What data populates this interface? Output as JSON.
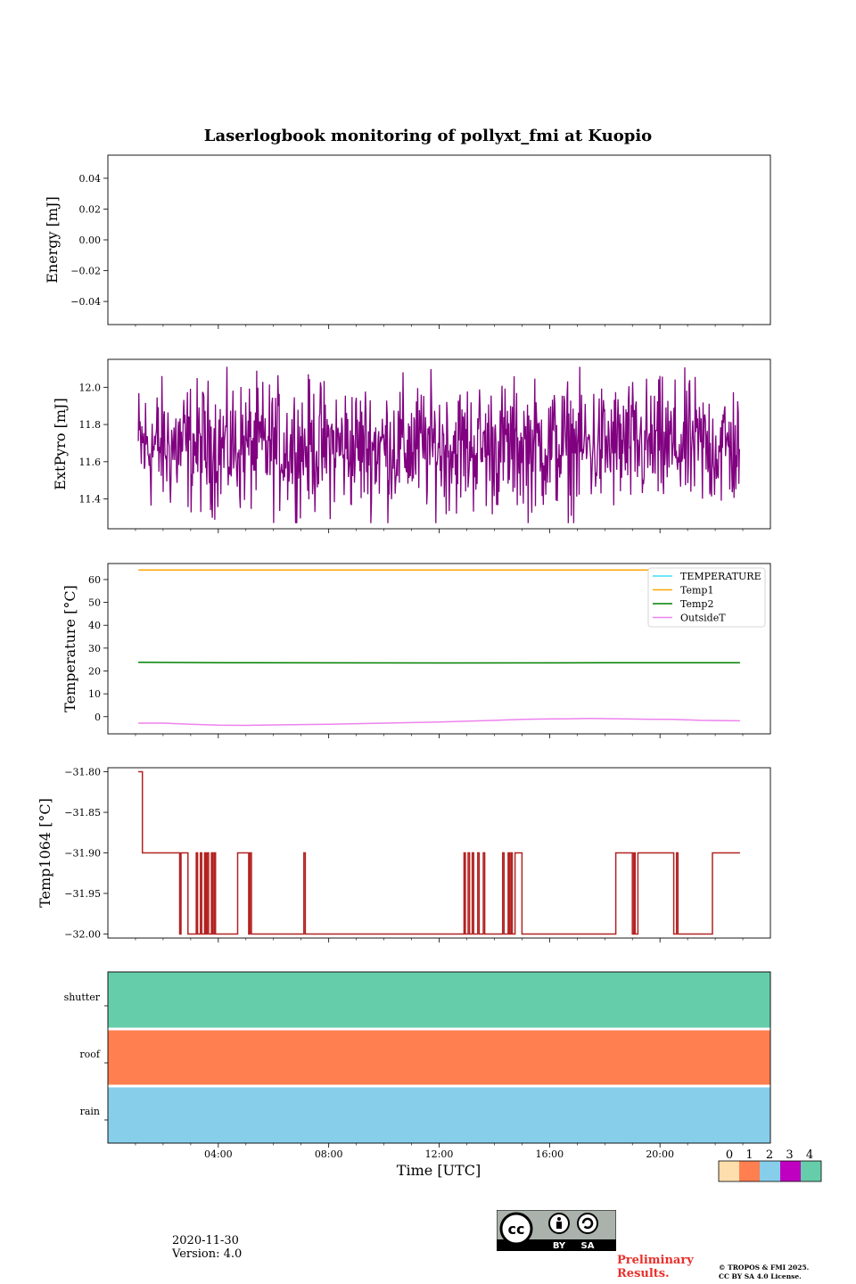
{
  "title": "Laserlogbook monitoring of pollyxt_fmi at Kuopio",
  "footer": {
    "date": "2020-11-30",
    "version": "Version: 4.0",
    "preliminary": "Preliminary Results.",
    "copyright_line1": "© TROPOS & FMI 2025.",
    "copyright_line2": "CC BY SA 4.0 License.",
    "license_badge": {
      "icon": "cc-by-sa-icon",
      "by": "BY",
      "sa": "SA"
    }
  },
  "chart_data": [
    {
      "id": "energy",
      "type": "line",
      "ylabel": "Energy [mJ]",
      "ylim": [
        -0.055,
        0.055
      ],
      "yticks": [
        "0.04",
        "0.02",
        "0.00",
        "−0.02",
        "−0.04"
      ],
      "ytick_values": [
        0.04,
        0.02,
        0.0,
        -0.02,
        -0.04
      ],
      "series": []
    },
    {
      "id": "extpyro",
      "type": "line",
      "ylabel": "ExtPyro [mJ]",
      "ylim": [
        11.24,
        12.15
      ],
      "yticks": [
        "12.0",
        "11.8",
        "11.6",
        "11.4"
      ],
      "ytick_values": [
        12.0,
        11.8,
        11.6,
        11.4
      ],
      "series": [
        {
          "name": "ExtPyro",
          "color": "#800080",
          "mean": 11.68,
          "min": 11.27,
          "max": 12.11,
          "noise": true
        }
      ]
    },
    {
      "id": "temperature",
      "type": "line",
      "ylabel": "Temperature [°C]",
      "ylim": [
        -7.5,
        67
      ],
      "yticks": [
        "60",
        "50",
        "40",
        "30",
        "20",
        "10",
        "0"
      ],
      "ytick_values": [
        60,
        50,
        40,
        30,
        20,
        10,
        0
      ],
      "legend": "top-right",
      "series": [
        {
          "name": "TEMPERATURE",
          "color": "#40e0f0",
          "points": []
        },
        {
          "name": "Temp1",
          "color": "#ffa500",
          "points": [
            [
              1.1,
              64.2
            ],
            [
              22.9,
              64.2
            ]
          ]
        },
        {
          "name": "Temp2",
          "color": "#008000",
          "points": [
            [
              1.1,
              23.8
            ],
            [
              5,
              23.6
            ],
            [
              12,
              23.5
            ],
            [
              18,
              23.6
            ],
            [
              22.9,
              23.6
            ]
          ]
        },
        {
          "name": "OutsideT",
          "color": "#ee82ee",
          "points": [
            [
              1.1,
              -2.8
            ],
            [
              2,
              -2.8
            ],
            [
              3,
              -3.3
            ],
            [
              4,
              -3.7
            ],
            [
              5,
              -3.8
            ],
            [
              6,
              -3.6
            ],
            [
              8,
              -3.3
            ],
            [
              10,
              -2.8
            ],
            [
              12,
              -2.3
            ],
            [
              14,
              -1.6
            ],
            [
              15,
              -1.2
            ],
            [
              16,
              -1.0
            ],
            [
              17.5,
              -0.8
            ],
            [
              18.5,
              -0.9
            ],
            [
              19.5,
              -1.1
            ],
            [
              20.5,
              -1.2
            ],
            [
              21.5,
              -1.6
            ],
            [
              22.9,
              -1.8
            ]
          ]
        }
      ]
    },
    {
      "id": "temp1064",
      "type": "line",
      "ylabel": "Temp1064 [°C]",
      "ylim": [
        -32.005,
        -31.795
      ],
      "yticks": [
        "−31.80",
        "−31.85",
        "−31.90",
        "−31.95",
        "−32.00"
      ],
      "ytick_values": [
        -31.8,
        -31.85,
        -31.9,
        -31.95,
        -32.0
      ],
      "series": [
        {
          "name": "Temp1064",
          "color": "#b22222",
          "steps": [
            [
              1.1,
              -31.8
            ],
            [
              1.25,
              -31.9
            ],
            [
              2.6,
              -32.0
            ],
            [
              2.65,
              -31.9
            ],
            [
              2.9,
              -32.0
            ],
            [
              3.2,
              -31.9
            ],
            [
              3.25,
              -32.0
            ],
            [
              3.35,
              -31.9
            ],
            [
              3.4,
              -32.0
            ],
            [
              3.5,
              -31.9
            ],
            [
              3.55,
              -32.0
            ],
            [
              3.6,
              -31.9
            ],
            [
              3.65,
              -32.0
            ],
            [
              3.75,
              -31.9
            ],
            [
              3.8,
              -32.0
            ],
            [
              3.85,
              -31.9
            ],
            [
              3.9,
              -32.0
            ],
            [
              4.7,
              -31.9
            ],
            [
              5.1,
              -32.0
            ],
            [
              5.15,
              -31.9
            ],
            [
              5.2,
              -32.0
            ],
            [
              7.1,
              -31.9
            ],
            [
              7.15,
              -32.0
            ],
            [
              12.9,
              -31.9
            ],
            [
              12.95,
              -32.0
            ],
            [
              13.05,
              -31.9
            ],
            [
              13.1,
              -32.0
            ],
            [
              13.2,
              -31.9
            ],
            [
              13.25,
              -32.0
            ],
            [
              13.4,
              -31.9
            ],
            [
              13.45,
              -32.0
            ],
            [
              13.6,
              -31.9
            ],
            [
              13.65,
              -32.0
            ],
            [
              14.3,
              -31.9
            ],
            [
              14.35,
              -32.0
            ],
            [
              14.5,
              -31.9
            ],
            [
              14.55,
              -32.0
            ],
            [
              14.6,
              -31.9
            ],
            [
              14.65,
              -32.0
            ],
            [
              14.75,
              -31.9
            ],
            [
              15.0,
              -32.0
            ],
            [
              18.4,
              -31.9
            ],
            [
              19.0,
              -32.0
            ],
            [
              19.05,
              -31.9
            ],
            [
              19.1,
              -32.0
            ],
            [
              19.2,
              -31.9
            ],
            [
              20.5,
              -32.0
            ],
            [
              20.6,
              -31.9
            ],
            [
              20.65,
              -32.0
            ],
            [
              21.9,
              -31.9
            ],
            [
              22.9,
              -31.9
            ]
          ]
        }
      ]
    },
    {
      "id": "status",
      "type": "heatmap",
      "rows": [
        "shutter",
        "roof",
        "rain"
      ],
      "row_values": [
        4,
        1,
        2
      ],
      "row_colors": [
        "#66cdaa",
        "#ff7f50",
        "#87ceeb"
      ],
      "xlabel": "Time [UTC]",
      "xticks": [
        "04:00",
        "08:00",
        "12:00",
        "16:00",
        "20:00"
      ],
      "xtick_values": [
        4,
        8,
        12,
        16,
        20
      ],
      "xlim": [
        0,
        24
      ],
      "colorbar": {
        "labels": [
          "0",
          "1",
          "2",
          "3",
          "4"
        ],
        "colors": [
          "#ffdead",
          "#ff7f50",
          "#87ceeb",
          "#c000c0",
          "#66cdaa"
        ]
      }
    }
  ]
}
